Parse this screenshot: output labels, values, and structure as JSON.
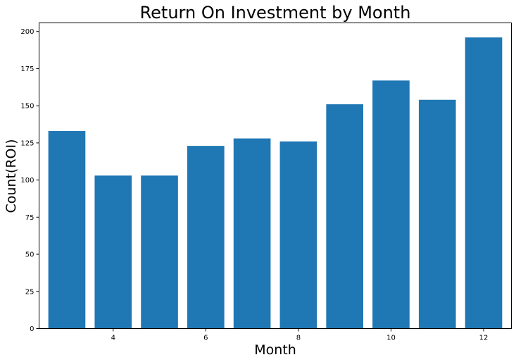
{
  "chart_data": {
    "type": "bar",
    "title": "Return On Investment by Month",
    "xlabel": "Month",
    "ylabel": "Count(ROI)",
    "x": [
      3,
      4,
      5,
      6,
      7,
      8,
      9,
      10,
      11,
      12
    ],
    "values": [
      133,
      103,
      103,
      123,
      128,
      126,
      151,
      167,
      154,
      196
    ],
    "xticks": [
      4,
      6,
      8,
      10,
      12
    ],
    "yticks": [
      0,
      25,
      50,
      75,
      100,
      125,
      150,
      175,
      200
    ],
    "xlim": [
      2.4,
      12.6
    ],
    "ylim": [
      0,
      205.8
    ],
    "bar_color": "#1f77b4",
    "grid": false
  }
}
